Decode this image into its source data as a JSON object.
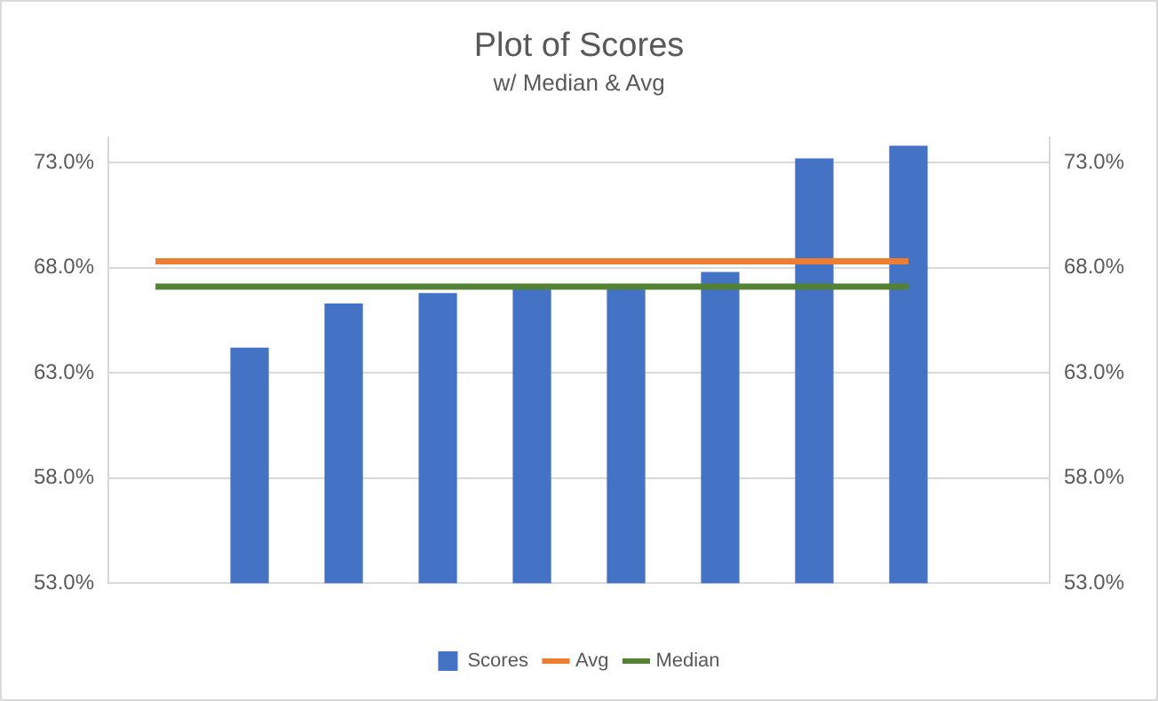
{
  "chart_data": {
    "type": "bar",
    "title": "Plot of Scores",
    "subtitle": "w/ Median & Avg",
    "categories": [
      null,
      null,
      null,
      null,
      null,
      null,
      null,
      null,
      null,
      null
    ],
    "series": [
      {
        "name": "Scores",
        "color": "#4472c4",
        "values": [
          null,
          64.2,
          66.3,
          66.8,
          67.1,
          67.1,
          67.8,
          73.2,
          73.8,
          null
        ]
      },
      {
        "name": "Avg",
        "type": "line",
        "color": "#ed7d31",
        "values": [
          68.3,
          68.3,
          68.3,
          68.3,
          68.3,
          68.3,
          68.3,
          68.3,
          68.3,
          null
        ]
      },
      {
        "name": "Median",
        "type": "line",
        "color": "#548235",
        "values": [
          67.1,
          67.1,
          67.1,
          67.1,
          67.1,
          67.1,
          67.1,
          67.1,
          67.1,
          null
        ]
      }
    ],
    "ylim": [
      53,
      74.2
    ],
    "yticks": [
      {
        "value": 53,
        "label": "53.0%"
      },
      {
        "value": 58,
        "label": "58.0%"
      },
      {
        "value": 63,
        "label": "63.0%"
      },
      {
        "value": 68,
        "label": "68.0%"
      },
      {
        "value": 73,
        "label": "73.0%"
      }
    ],
    "y2lim": [
      53,
      74.2
    ],
    "y2ticks": [
      {
        "value": 53,
        "label": "53.0%"
      },
      {
        "value": 58,
        "label": "58.0%"
      },
      {
        "value": 63,
        "label": "63.0%"
      },
      {
        "value": 68,
        "label": "68.0%"
      },
      {
        "value": 73,
        "label": "73.0%"
      }
    ],
    "grid": "y",
    "legend": "bottom",
    "marker": "none",
    "line_style": "solid"
  }
}
